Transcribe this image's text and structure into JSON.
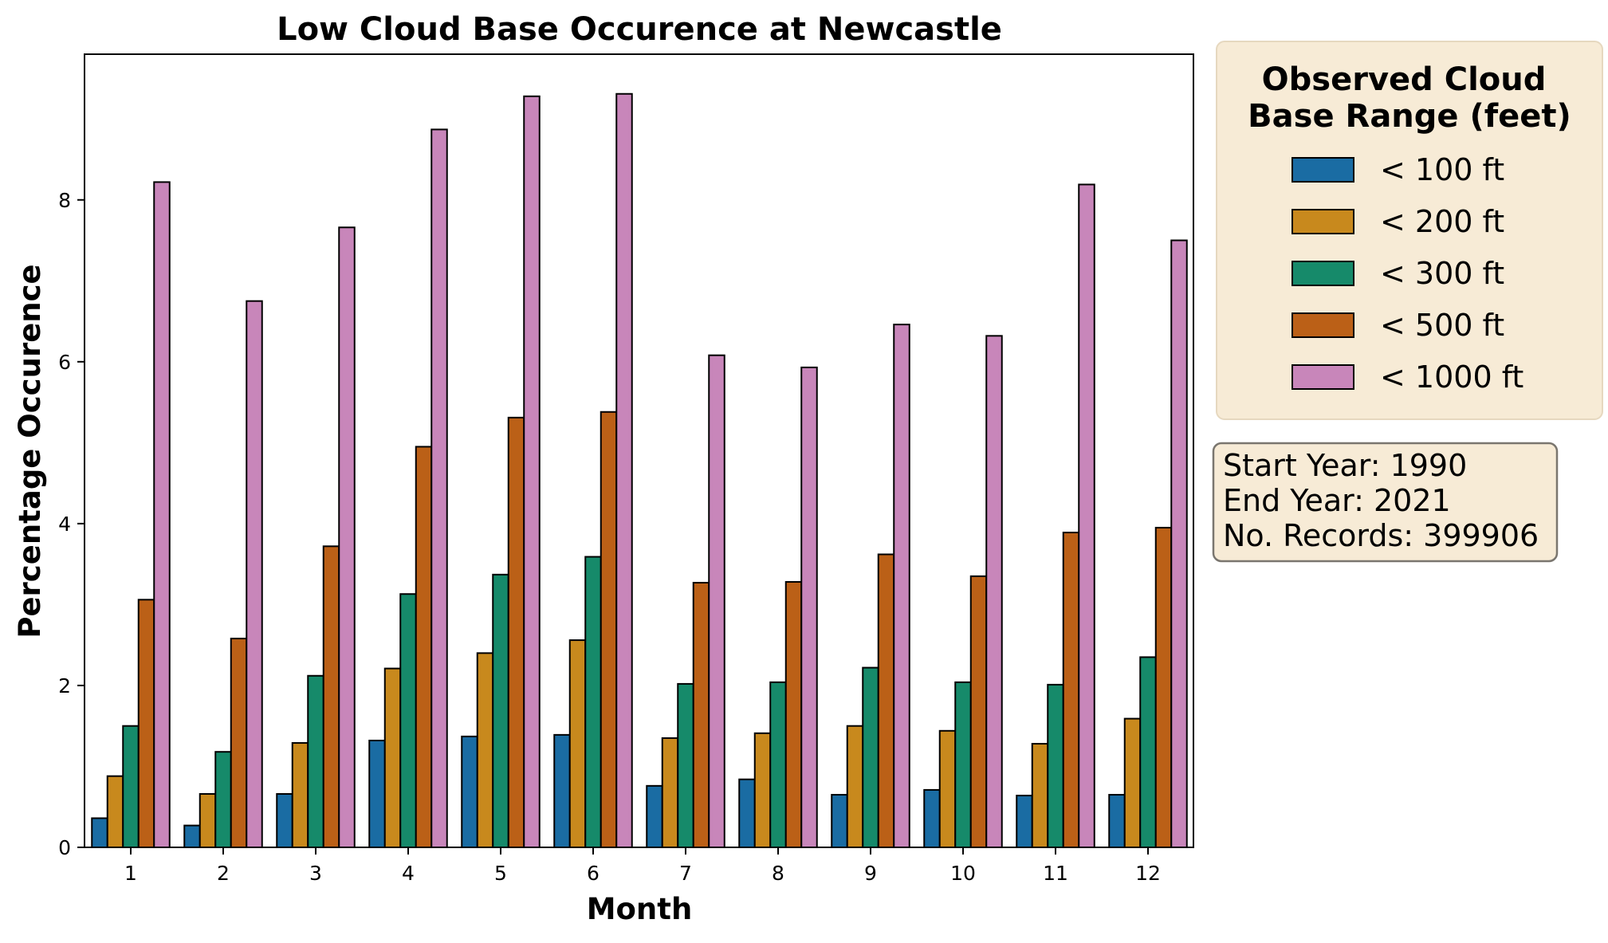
{
  "chart_data": {
    "type": "bar",
    "title": "Low Cloud Base Occurence at Newcastle",
    "xlabel": "Month",
    "ylabel": "Percentage Occurence",
    "categories": [
      "1",
      "2",
      "3",
      "4",
      "5",
      "6",
      "7",
      "8",
      "9",
      "10",
      "11",
      "12"
    ],
    "ylim": [
      0,
      9.8
    ],
    "yticks": [
      "0",
      "2",
      "4",
      "6",
      "8"
    ],
    "legend_title": "Observed Cloud Base Range (feet)",
    "legend_placement": "outside-top-right",
    "series": [
      {
        "name": "< 100 ft",
        "color": "#1a6ca3",
        "values": [
          0.36,
          0.27,
          0.66,
          1.32,
          1.37,
          1.39,
          0.76,
          0.84,
          0.65,
          0.71,
          0.64,
          0.65
        ]
      },
      {
        "name": "< 200 ft",
        "color": "#c8891d",
        "values": [
          0.88,
          0.66,
          1.29,
          2.21,
          2.4,
          2.56,
          1.35,
          1.41,
          1.5,
          1.44,
          1.28,
          1.59
        ]
      },
      {
        "name": "< 300 ft",
        "color": "#168a6a",
        "values": [
          1.5,
          1.18,
          2.12,
          3.13,
          3.37,
          3.59,
          2.02,
          2.04,
          2.22,
          2.04,
          2.01,
          2.35
        ]
      },
      {
        "name": "< 500 ft",
        "color": "#bb6017",
        "values": [
          3.06,
          2.58,
          3.72,
          4.95,
          5.31,
          5.38,
          3.27,
          3.28,
          3.62,
          3.35,
          3.89,
          3.95
        ]
      },
      {
        "name": "< 1000 ft",
        "color": "#c886ba",
        "values": [
          8.22,
          6.75,
          7.66,
          8.87,
          9.28,
          9.31,
          6.08,
          5.93,
          6.46,
          6.32,
          8.19,
          7.5
        ]
      }
    ]
  },
  "info_box": {
    "start_year": "Start Year: 1990",
    "end_year": "End Year: 2021",
    "records": "No. Records: 399906"
  },
  "colors": {
    "legend_bg": "#f7ebd6",
    "legend_border": "#e6d8bf",
    "info_bg": "#f7ebd6",
    "info_border": "#7a766f"
  }
}
